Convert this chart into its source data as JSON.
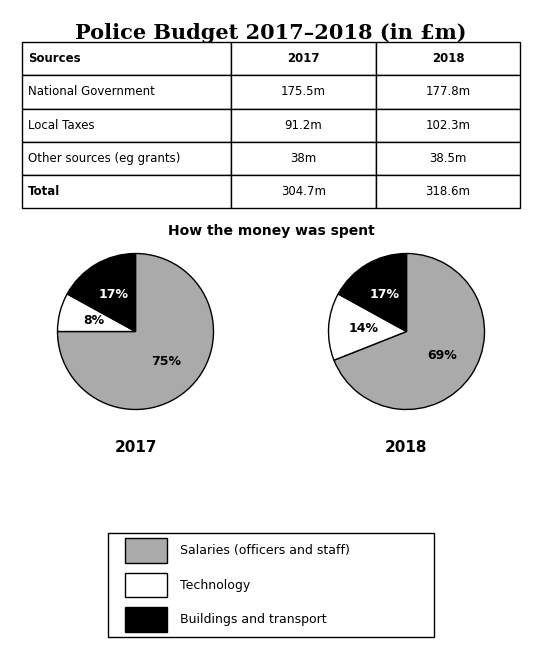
{
  "title": "Police Budget 2017–2018 (in £m)",
  "table": {
    "headers": [
      "Sources",
      "2017",
      "2018"
    ],
    "rows": [
      [
        "National Government",
        "175.5m",
        "177.8m"
      ],
      [
        "Local Taxes",
        "91.2m",
        "102.3m"
      ],
      [
        "Other sources (eg grants)",
        "38m",
        "38.5m"
      ],
      [
        "Total",
        "304.7m",
        "318.6m"
      ]
    ]
  },
  "pie_title": "How the money was spent",
  "pie_2017": {
    "label": "2017",
    "values": [
      75,
      8,
      17
    ],
    "colors": [
      "#aaaaaa",
      "#ffffff",
      "#000000"
    ],
    "labels": [
      "75%",
      "8%",
      "17%"
    ],
    "startangle": 90,
    "wedge_order": [
      "Salaries",
      "Technology",
      "Buildings"
    ]
  },
  "pie_2018": {
    "label": "2018",
    "values": [
      69,
      14,
      17
    ],
    "colors": [
      "#aaaaaa",
      "#ffffff",
      "#000000"
    ],
    "labels": [
      "69%",
      "14%",
      "17%"
    ],
    "startangle": 90,
    "wedge_order": [
      "Salaries",
      "Technology",
      "Buildings"
    ]
  },
  "legend_items": [
    {
      "label": "Salaries (officers and staff)",
      "color": "#aaaaaa"
    },
    {
      "label": "Technology",
      "color": "#ffffff"
    },
    {
      "label": "Buildings and transport",
      "color": "#000000"
    }
  ],
  "bg_color": "#ffffff"
}
